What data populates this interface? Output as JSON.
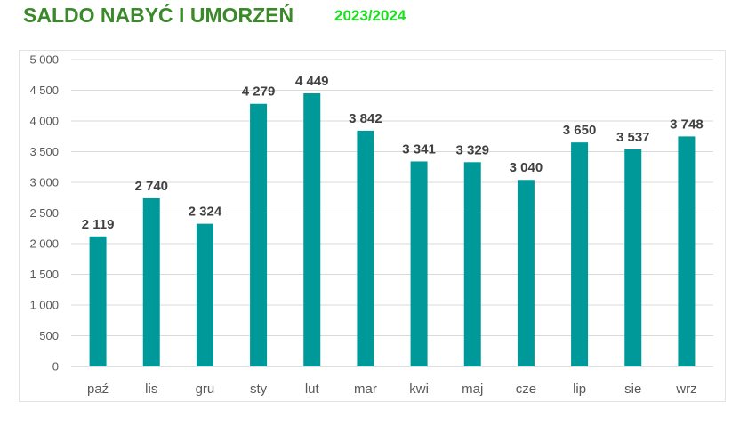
{
  "header": {
    "title": "SALDO NABYĆ I UMORZEŃ",
    "subtitle": "2023/2024"
  },
  "colors": {
    "bar": "#009999",
    "title": "#3a8a2a",
    "subtitle": "#19e01d"
  },
  "chart_data": {
    "type": "bar",
    "categories": [
      "paź",
      "lis",
      "gru",
      "sty",
      "lut",
      "mar",
      "kwi",
      "maj",
      "cze",
      "lip",
      "sie",
      "wrz"
    ],
    "values": [
      2119,
      2740,
      2324,
      4279,
      4449,
      3842,
      3341,
      3329,
      3040,
      3650,
      3537,
      3748
    ],
    "data_labels": [
      "2 119",
      "2 740",
      "2 324",
      "4 279",
      "4 449",
      "3 842",
      "3 341",
      "3 329",
      "3 040",
      "3 650",
      "3 537",
      "3 748"
    ],
    "yticks": [
      0,
      500,
      1000,
      1500,
      2000,
      2500,
      3000,
      3500,
      4000,
      4500,
      5000
    ],
    "ytick_labels": [
      "0",
      "500",
      "1 000",
      "1 500",
      "2 000",
      "2 500",
      "3 000",
      "3 500",
      "4 000",
      "4 500",
      "5 000"
    ],
    "ylim": [
      0,
      5000
    ],
    "grid": true,
    "legend": "none"
  }
}
